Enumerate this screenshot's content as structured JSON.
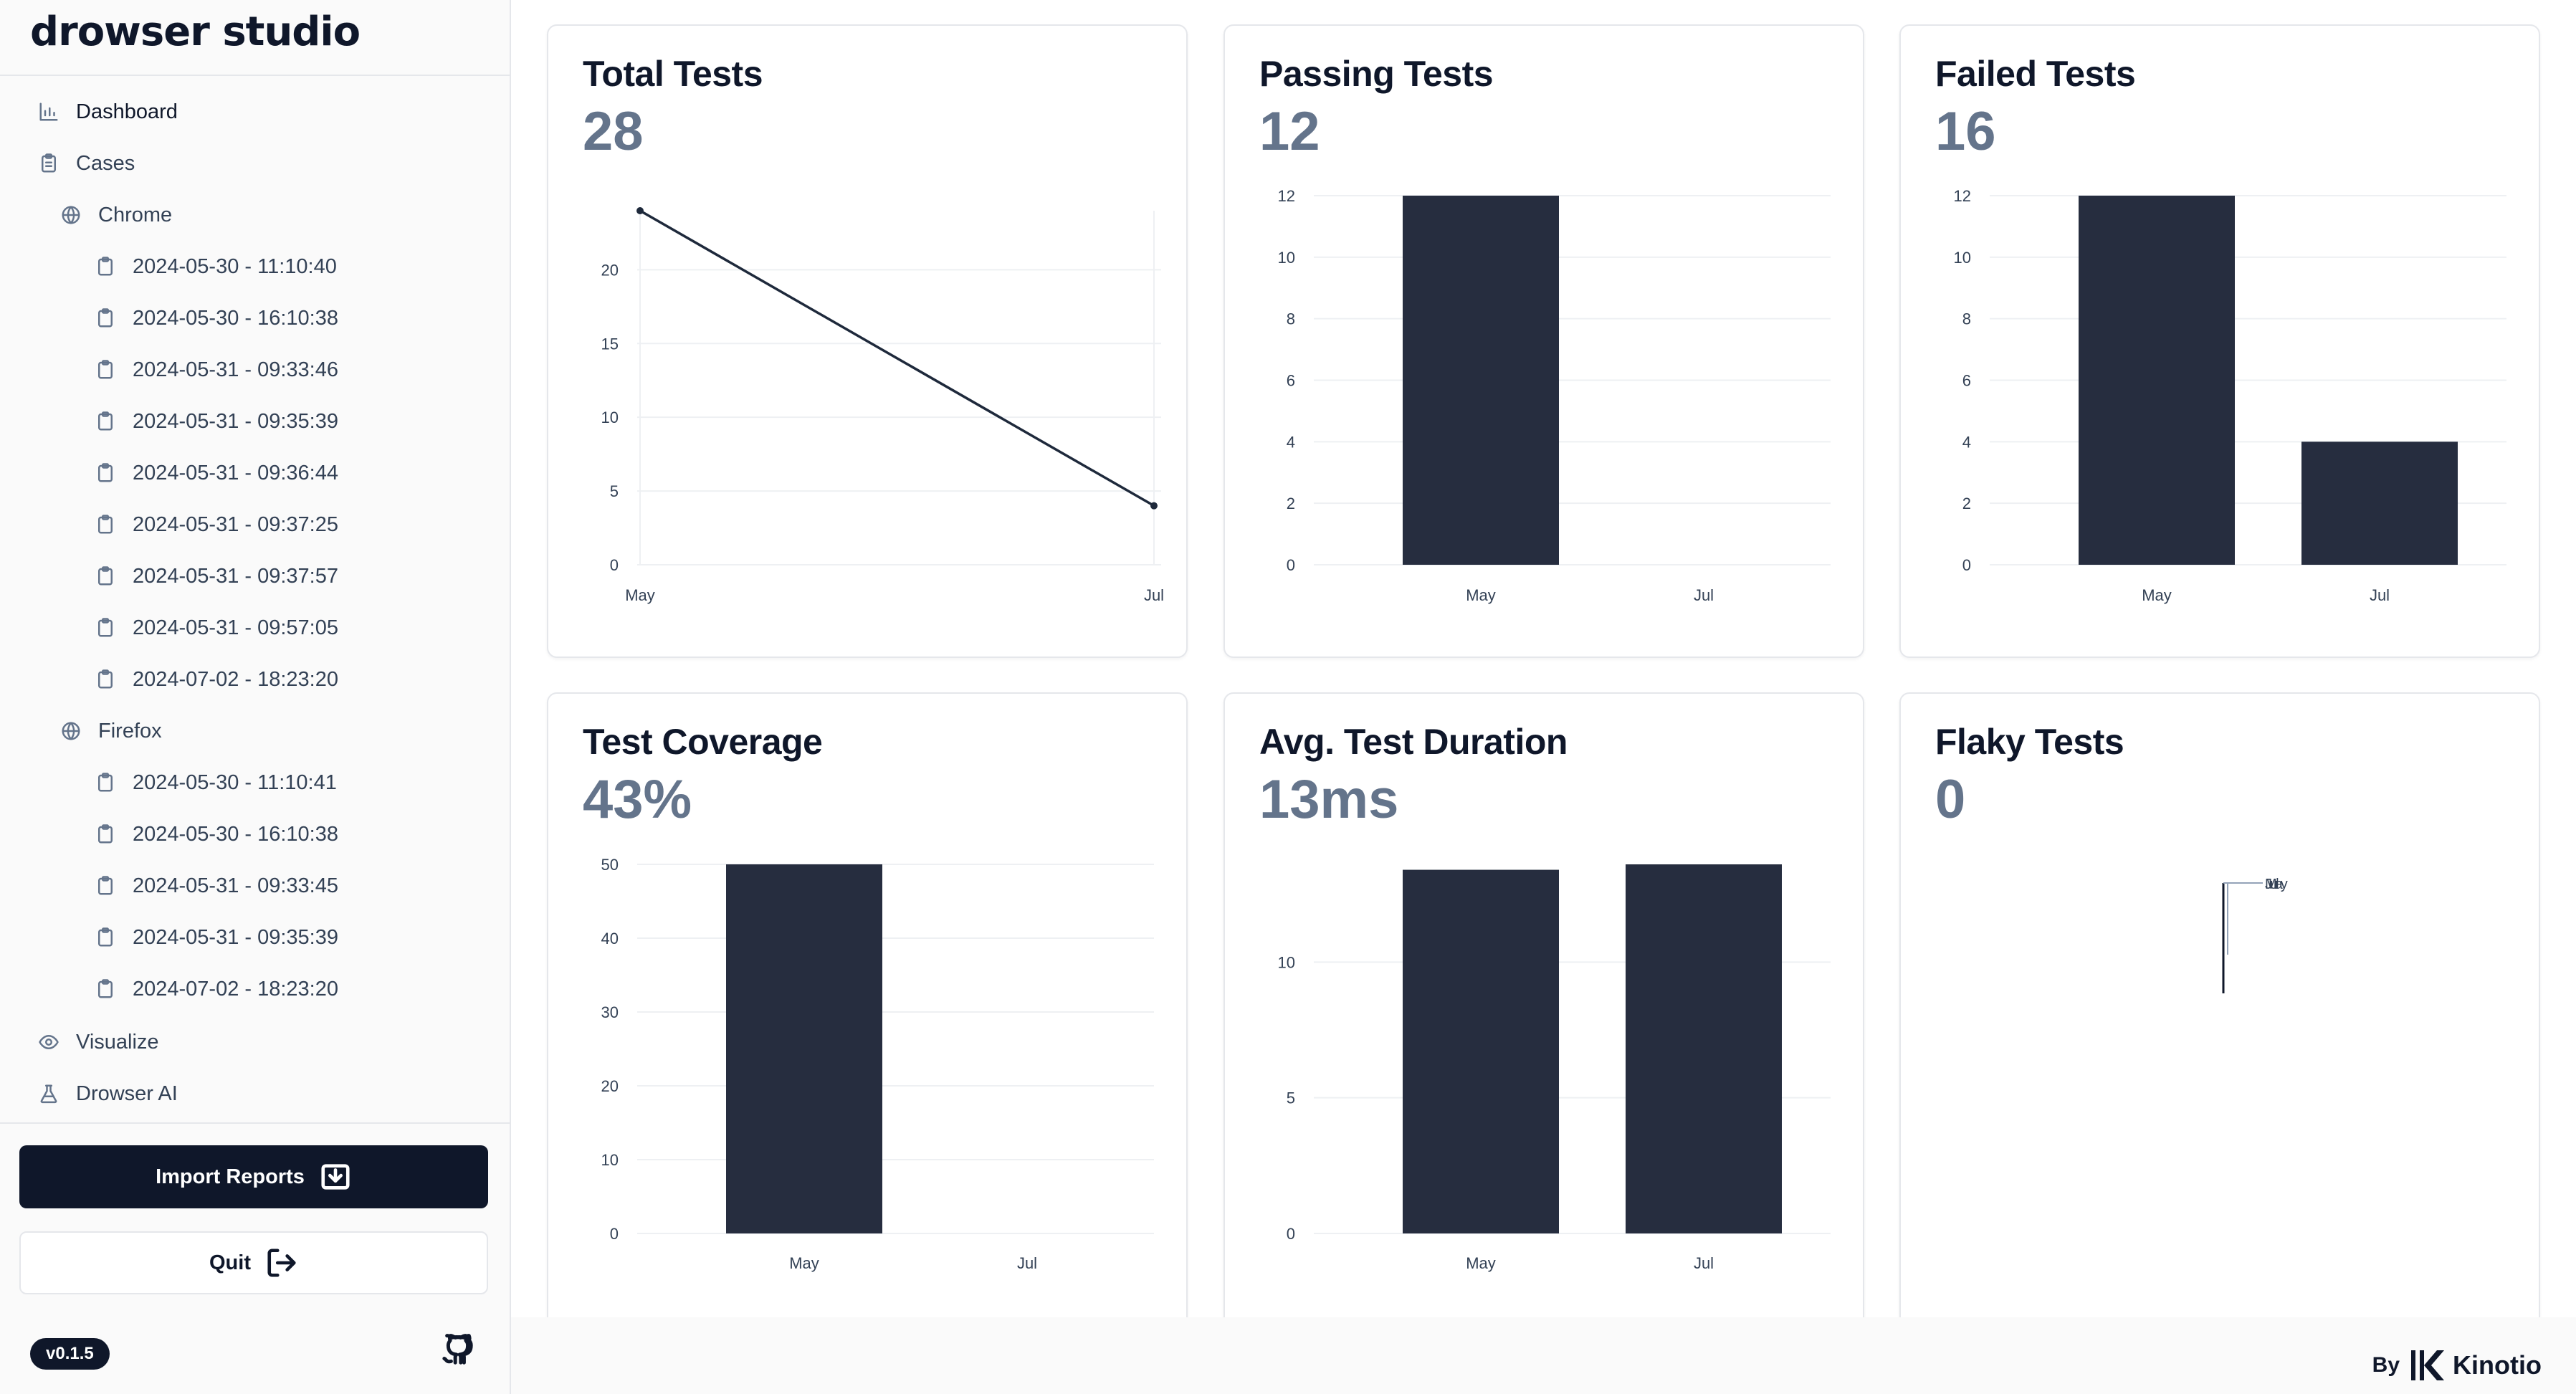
{
  "app": {
    "logo": "drowser studio",
    "version": "v0.1.5",
    "footer_by": "By",
    "footer_brand": "Kinotio"
  },
  "sidebar": {
    "dashboard": "Dashboard",
    "cases": "Cases",
    "chrome": {
      "label": "Chrome",
      "items": [
        "2024-05-30 - 11:10:40",
        "2024-05-30 - 16:10:38",
        "2024-05-31 - 09:33:46",
        "2024-05-31 - 09:35:39",
        "2024-05-31 - 09:36:44",
        "2024-05-31 - 09:37:25",
        "2024-05-31 - 09:37:57",
        "2024-05-31 - 09:57:05",
        "2024-07-02 - 18:23:20"
      ]
    },
    "firefox": {
      "label": "Firefox",
      "items": [
        "2024-05-30 - 11:10:41",
        "2024-05-30 - 16:10:38",
        "2024-05-31 - 09:33:45",
        "2024-05-31 - 09:35:39",
        "2024-07-02 - 18:23:20"
      ]
    },
    "visualize": "Visualize",
    "drowser_ai": "Drowser AI",
    "import_label": "Import Reports",
    "quit_label": "Quit",
    "icons": {
      "dashboard": "bar-chart-icon",
      "cases": "clipboard-icon",
      "browser": "globe-icon",
      "case": "clipboard-icon",
      "visualize": "eye-icon",
      "ai": "flask-icon",
      "import": "import-icon",
      "quit": "logout-icon",
      "github": "github-icon"
    }
  },
  "cards": [
    {
      "title": "Total Tests",
      "value": "28"
    },
    {
      "title": "Passing Tests",
      "value": "12"
    },
    {
      "title": "Failed Tests",
      "value": "16"
    },
    {
      "title": "Test Coverage",
      "value": "43%"
    },
    {
      "title": "Avg. Test Duration",
      "value": "13ms"
    },
    {
      "title": "Flaky Tests",
      "value": "0"
    }
  ],
  "colors": {
    "bar": "#262d3f",
    "line": "#1e293b",
    "value": "#64748b",
    "accent": "#0f172a"
  },
  "chart_data": [
    {
      "type": "line",
      "title": "Total Tests",
      "x": [
        "May",
        "Jul"
      ],
      "values": [
        24,
        4
      ],
      "yticks": [
        0,
        5,
        10,
        15,
        20
      ],
      "ylim": [
        0,
        24
      ]
    },
    {
      "type": "bar",
      "title": "Passing Tests",
      "categories": [
        "May",
        "Jul"
      ],
      "values": [
        12,
        0
      ],
      "yticks": [
        0,
        2,
        4,
        6,
        8,
        10,
        12
      ],
      "ylim": [
        0,
        12
      ]
    },
    {
      "type": "bar",
      "title": "Failed Tests",
      "categories": [
        "May",
        "Jul"
      ],
      "values": [
        12,
        4
      ],
      "yticks": [
        0,
        2,
        4,
        6,
        8,
        10,
        12
      ],
      "ylim": [
        0,
        12
      ]
    },
    {
      "type": "bar",
      "title": "Test Coverage",
      "categories": [
        "May",
        "Jul"
      ],
      "values": [
        50,
        0
      ],
      "yticks": [
        0,
        10,
        20,
        30,
        40,
        50
      ],
      "ylim": [
        0,
        50
      ]
    },
    {
      "type": "bar",
      "title": "Avg. Test Duration",
      "categories": [
        "May",
        "Jul"
      ],
      "values": [
        13.4,
        13.6
      ],
      "yticks": [
        0,
        5,
        10
      ],
      "ylim": [
        0,
        13.6
      ]
    },
    {
      "type": "line",
      "title": "Flaky Tests",
      "x": [
        "May",
        "Jul"
      ],
      "labels_overlap": "MaJul",
      "values": [
        0,
        0
      ]
    }
  ]
}
